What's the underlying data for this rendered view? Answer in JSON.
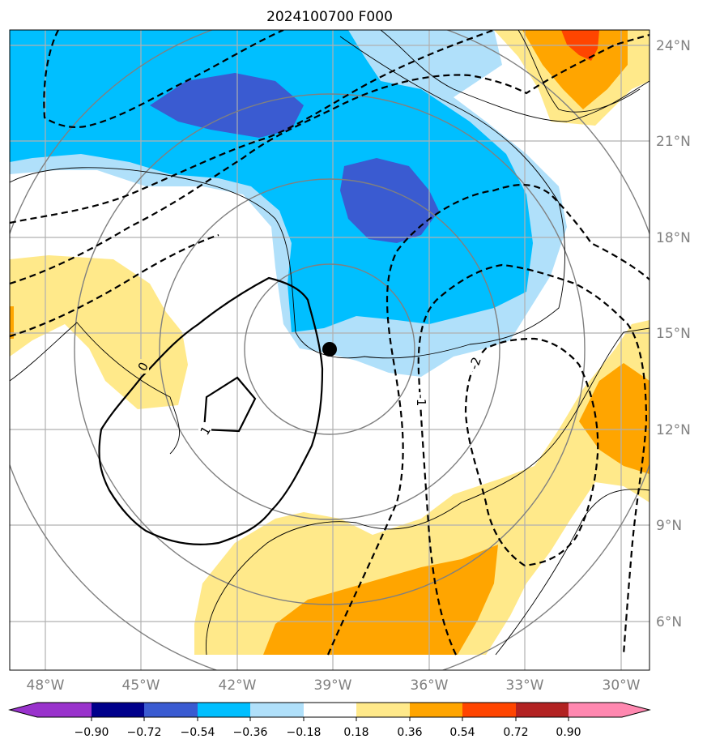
{
  "title": "2024100700 F000",
  "lon_ticks": [
    "48°W",
    "45°W",
    "42°W",
    "39°W",
    "36°W",
    "33°W",
    "30°W"
  ],
  "lat_ticks": [
    "24°N",
    "21°N",
    "18°N",
    "15°N",
    "12°N",
    "9°N",
    "6°N"
  ],
  "colorbar": {
    "labels": [
      "−0.90",
      "−0.72",
      "−0.54",
      "−0.36",
      "−0.18",
      "0.18",
      "0.36",
      "0.54",
      "0.72",
      "0.90"
    ],
    "colors": [
      "#9932cc",
      "#00008b",
      "#3a5bd1",
      "#00bfff",
      "#b0e0fa",
      "#ffffff",
      "#ffe98a",
      "#ffa500",
      "#ff4500",
      "#b22222",
      "#ff88b0"
    ]
  },
  "contour_labels": [
    "0",
    "1",
    "-1",
    "-2"
  ],
  "colors": {
    "dark_blue": "#3a5bd1",
    "mid_blue": "#00bfff",
    "light_blue": "#b0e0fa",
    "yellow": "#ffe98a",
    "orange": "#ffa500",
    "red_orange": "#ff4500",
    "grid": "#b0b0b0",
    "ring": "#808080"
  },
  "center_marker": "storm-center"
}
